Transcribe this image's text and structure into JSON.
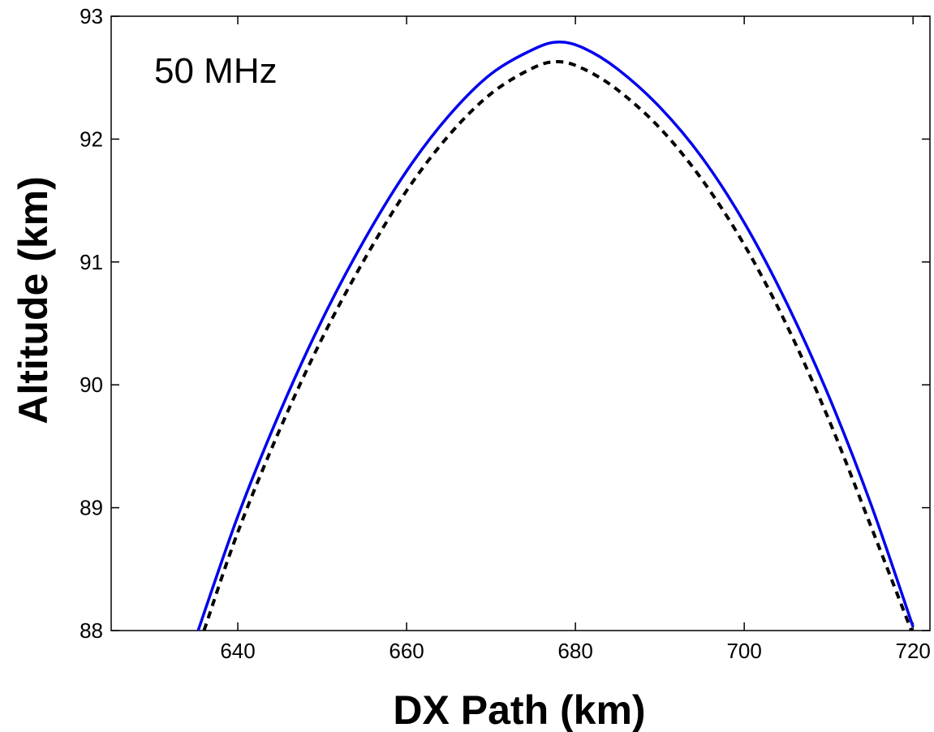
{
  "chart_data": {
    "type": "line",
    "xlabel": "DX Path (km)",
    "ylabel": "Altitude (km)",
    "annotation": "50 MHz",
    "xlim": [
      625,
      722
    ],
    "ylim": [
      88,
      93
    ],
    "xticks": [
      640,
      660,
      680,
      700,
      720
    ],
    "yticks": [
      88,
      89,
      90,
      91,
      92,
      93
    ],
    "grid": false,
    "series": [
      {
        "style": "solid",
        "color": "#0000ee",
        "x": [
          635.3,
          640,
          645,
          650,
          655,
          660,
          665,
          670,
          675,
          678,
          681,
          685,
          690,
          695,
          700,
          705,
          710,
          715,
          720
        ],
        "y": [
          88.0,
          88.93,
          89.78,
          90.53,
          91.18,
          91.74,
          92.19,
          92.53,
          92.73,
          92.79,
          92.74,
          92.57,
          92.26,
          91.85,
          91.32,
          90.67,
          89.91,
          89.03,
          88.03
        ]
      },
      {
        "style": "dashed",
        "color": "#000000",
        "x": [
          636.0,
          640,
          645,
          650,
          655,
          660,
          665,
          670,
          675,
          678,
          681,
          685,
          690,
          695,
          700,
          705,
          710,
          715,
          719.8
        ],
        "y": [
          88.0,
          88.8,
          89.64,
          90.38,
          91.02,
          91.58,
          92.03,
          92.37,
          92.58,
          92.63,
          92.57,
          92.4,
          92.09,
          91.67,
          91.14,
          90.49,
          89.72,
          88.85,
          88.0
        ]
      }
    ]
  }
}
